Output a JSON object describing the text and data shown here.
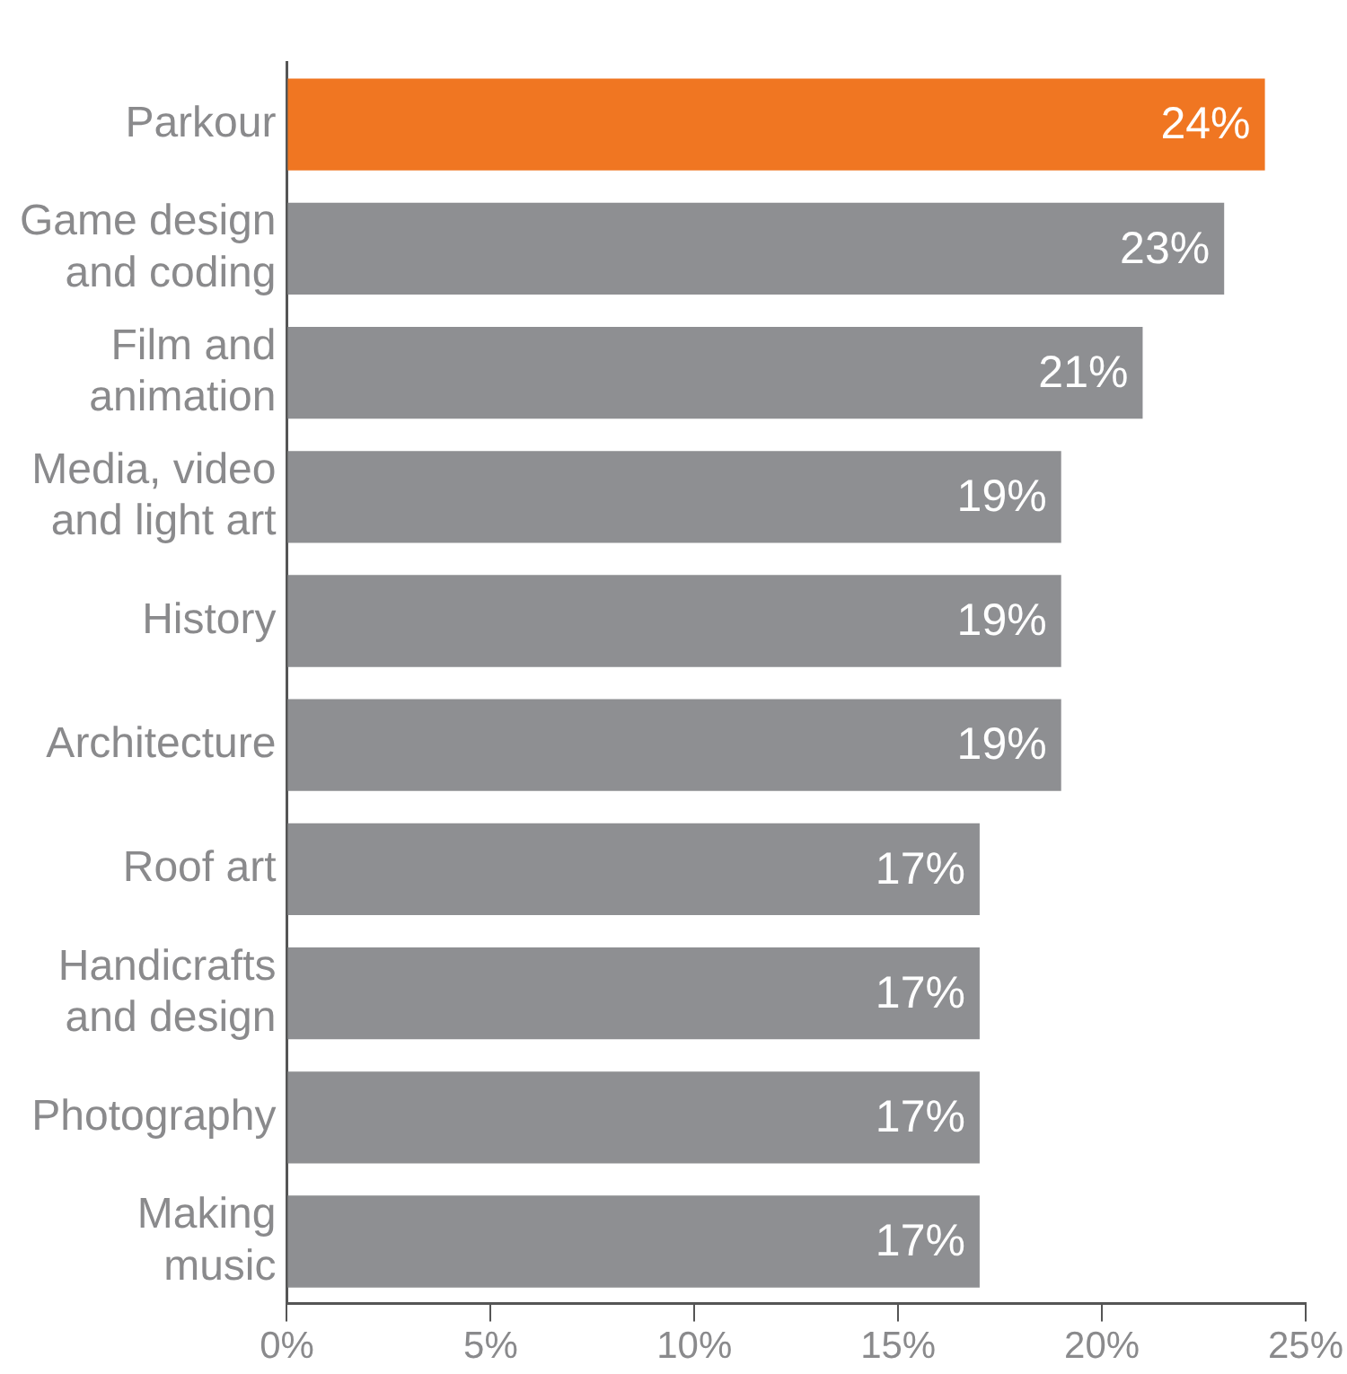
{
  "chart_data": {
    "type": "bar",
    "orientation": "horizontal",
    "categories": [
      "Parkour",
      "Game design and coding",
      "Film and animation",
      "Media, video and light art",
      "History",
      "Architecture",
      "Roof art",
      "Handicrafts and design",
      "Photography",
      "Making music"
    ],
    "values": [
      24,
      23,
      21,
      19,
      19,
      19,
      17,
      17,
      17,
      17
    ],
    "colors": [
      "#f07622",
      "#8e8f92",
      "#8e8f92",
      "#8e8f92",
      "#8e8f92",
      "#8e8f92",
      "#8e8f92",
      "#8e8f92",
      "#8e8f92",
      "#8e8f92"
    ],
    "xlim": [
      0,
      25
    ],
    "xticks": [
      {
        "value": 0,
        "label": "0%"
      },
      {
        "value": 5,
        "label": "5%"
      },
      {
        "value": 10,
        "label": "10%"
      },
      {
        "value": 15,
        "label": "15%"
      },
      {
        "value": 20,
        "label": "20%"
      },
      {
        "value": 25,
        "label": "25%"
      }
    ],
    "value_labels": [
      "24%",
      "23%",
      "21%",
      "19%",
      "19%",
      "19%",
      "17%",
      "17%",
      "17%",
      "17%"
    ],
    "grid": false,
    "legend": false
  }
}
